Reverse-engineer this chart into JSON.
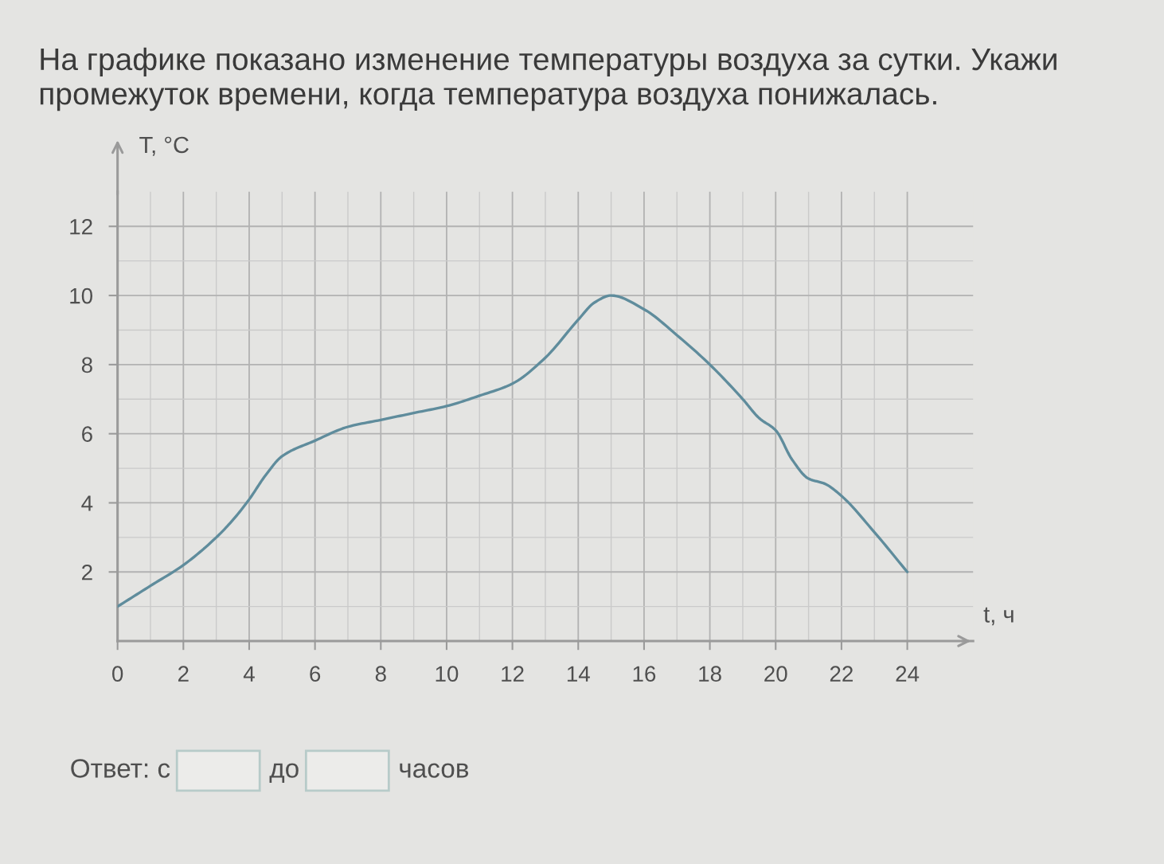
{
  "chart_data": {
    "type": "line",
    "title": "На графике показано изменение температуры воздуха за сутки. Укажи промежуток времени, когда температура воздуха понижалась.",
    "xlabel": "t, ч",
    "ylabel": "T, °C",
    "x": [
      0,
      1,
      2,
      3,
      3.5,
      4,
      4.5,
      5,
      6,
      7,
      8,
      9,
      10,
      11,
      12,
      13,
      14,
      14.5,
      15,
      16,
      17,
      18,
      19,
      19.5,
      20,
      20.5,
      21,
      21.5,
      22,
      23,
      24
    ],
    "series": [
      {
        "color": "#5f8c9c",
        "values": [
          1.0,
          1.6,
          2.2,
          3.0,
          3.5,
          4.1,
          4.8,
          5.35,
          5.8,
          6.2,
          6.4,
          6.6,
          6.8,
          7.1,
          7.45,
          8.2,
          9.3,
          9.8,
          10.0,
          9.6,
          8.85,
          8.0,
          7.0,
          6.45,
          6.1,
          5.25,
          4.7,
          4.55,
          4.2,
          3.15,
          2.0
        ]
      }
    ],
    "xlim": [
      0,
      26
    ],
    "ylim": [
      0,
      13
    ],
    "xticks": [
      0,
      {
        "value": 1,
        "label": null
      },
      2,
      {
        "value": 3,
        "label": null
      },
      4,
      {
        "value": 5,
        "label": null
      },
      6,
      {
        "value": 7,
        "label": null
      },
      8,
      {
        "value": 9,
        "label": null
      },
      10,
      {
        "value": 11,
        "label": null
      },
      12,
      {
        "value": 13,
        "label": null
      },
      14,
      {
        "value": 15,
        "label": null
      },
      16,
      {
        "value": 17,
        "label": null
      },
      18,
      {
        "value": 19,
        "label": null
      },
      20,
      {
        "value": 21,
        "label": null
      },
      22,
      {
        "value": 23,
        "label": null
      },
      24
    ],
    "yticks": [
      {
        "value": 1,
        "label": null
      },
      2,
      {
        "value": 3,
        "label": null
      },
      4,
      {
        "value": 5,
        "label": null
      },
      6,
      {
        "value": 7,
        "label": null
      },
      8,
      {
        "value": 9,
        "label": null
      },
      10,
      {
        "value": 11,
        "label": null
      },
      12
    ],
    "grid": true,
    "line_style": "solid",
    "annotations": [
      "Ответ: с",
      "до",
      "часов"
    ]
  }
}
